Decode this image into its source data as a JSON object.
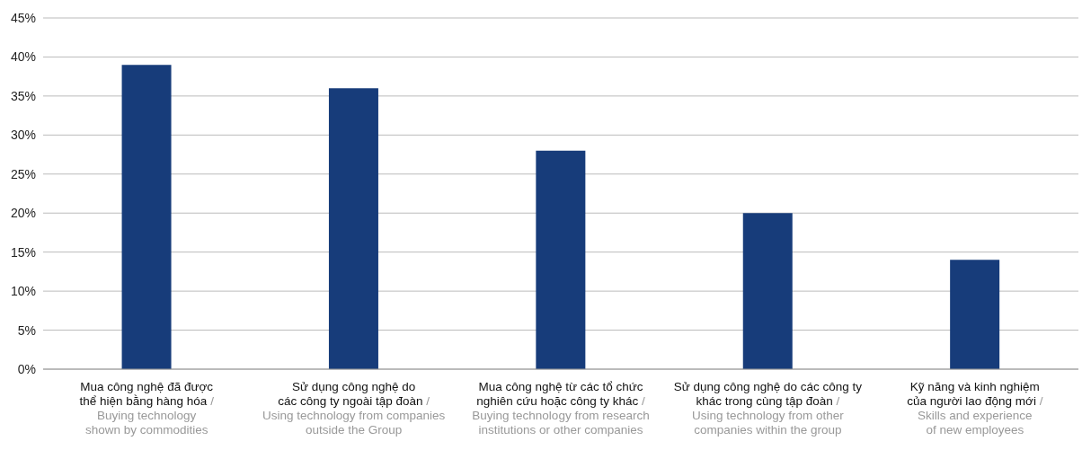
{
  "chart_data": {
    "type": "bar",
    "categories": [
      "Mua công nghệ đã được\nthể hiện bằng hàng hóa  /\nBuying technology\nshown by commodities",
      "Sử dụng công nghệ do\ncác công ty ngoài tập đoàn  /\nUsing technology from companies\noutside the Group",
      "Mua công nghệ từ các tổ chức\nnghiên cứu hoặc công ty khác  /\nBuying technology from research\ninstitutions or other companies",
      "Sử dụng công nghệ do các công ty\nkhác trong cùng tập đoàn  /\nUsing technology from other\ncompanies within the group",
      "Kỹ năng và kinh nghiệm\ncủa người lao động mới  /\nSkills and experience\nof new employees"
    ],
    "values": [
      39,
      36,
      28,
      20,
      14
    ],
    "color": "#173c7a",
    "ylim": [
      0,
      45
    ],
    "yticks": [
      {
        "value": 0,
        "label": "0%"
      },
      {
        "value": 5,
        "label": "5%"
      },
      {
        "value": 10,
        "label": "10%"
      },
      {
        "value": 15,
        "label": "15%"
      },
      {
        "value": 20,
        "label": "20%"
      },
      {
        "value": 25,
        "label": "25%"
      },
      {
        "value": 30,
        "label": "30%"
      },
      {
        "value": 35,
        "label": "35%"
      },
      {
        "value": 40,
        "label": "40%"
      },
      {
        "value": 45,
        "label": "45%"
      }
    ],
    "grid": "y"
  }
}
